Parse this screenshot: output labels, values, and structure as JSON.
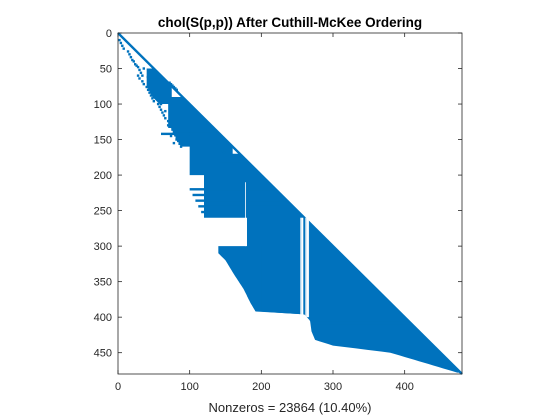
{
  "chart_data": {
    "type": "spy",
    "title": "chol(S(p,p)) After Cuthill-McKee Ordering",
    "xlabel": "Nonzeros = 23864 (10.40%)",
    "matrix_size": 480,
    "nonzeros": 23864,
    "density_percent": 10.4,
    "xlim": [
      0,
      480
    ],
    "ylim": [
      0,
      480
    ],
    "y_reversed": true,
    "x_ticks": [
      0,
      100,
      200,
      300,
      400
    ],
    "y_ticks": [
      0,
      50,
      100,
      150,
      200,
      250,
      300,
      350,
      400,
      450
    ],
    "marker_color": "#0072BD",
    "grid": false,
    "profile_left_col_by_row": [
      [
        0,
        0
      ],
      [
        10,
        4
      ],
      [
        20,
        12
      ],
      [
        30,
        22
      ],
      [
        40,
        28
      ],
      [
        55,
        32
      ],
      [
        70,
        38
      ],
      [
        90,
        48
      ],
      [
        100,
        58
      ],
      [
        120,
        64
      ],
      [
        135,
        75
      ],
      [
        150,
        82
      ],
      [
        160,
        88
      ],
      [
        175,
        92
      ],
      [
        190,
        98
      ],
      [
        210,
        96
      ],
      [
        230,
        100
      ],
      [
        250,
        104
      ],
      [
        262,
        112
      ],
      [
        280,
        118
      ],
      [
        300,
        130
      ],
      [
        320,
        150
      ],
      [
        340,
        162
      ],
      [
        360,
        175
      ],
      [
        380,
        185
      ],
      [
        392,
        192
      ],
      [
        396,
        260
      ],
      [
        405,
        268
      ],
      [
        420,
        270
      ],
      [
        432,
        275
      ],
      [
        440,
        300
      ],
      [
        450,
        380
      ],
      [
        465,
        430
      ],
      [
        480,
        480
      ]
    ],
    "dense_blocks": [
      {
        "rows": [
          50,
          100
        ],
        "cols": [
          40,
          75
        ]
      },
      {
        "rows": [
          90,
          160
        ],
        "cols": [
          70,
          125
        ]
      },
      {
        "rows": [
          120,
          200
        ],
        "cols": [
          100,
          160
        ]
      },
      {
        "rows": [
          170,
          260
        ],
        "cols": [
          120,
          200
        ]
      },
      {
        "rows": [
          200,
          400
        ],
        "cols": [
          180,
          270
        ]
      },
      {
        "rows": [
          250,
          480
        ],
        "cols": [
          200,
          480
        ]
      },
      {
        "rows": [
          300,
          400
        ],
        "cols": [
          140,
          200
        ]
      }
    ],
    "sparse_row_bands": [
      {
        "row": 62,
        "cols": [
          40,
          62
        ]
      },
      {
        "row": 132,
        "cols": [
          70,
          132
        ]
      },
      {
        "row": 142,
        "cols": [
          60,
          142
        ]
      },
      {
        "row": 150,
        "cols": [
          80,
          150
        ]
      },
      {
        "row": 172,
        "cols": [
          120,
          172
        ]
      },
      {
        "row": 180,
        "cols": [
          140,
          180
        ]
      },
      {
        "row": 220,
        "cols": [
          100,
          220
        ]
      },
      {
        "row": 228,
        "cols": [
          104,
          228
        ]
      },
      {
        "row": 236,
        "cols": [
          108,
          236
        ]
      },
      {
        "row": 244,
        "cols": [
          112,
          244
        ]
      },
      {
        "row": 252,
        "cols": [
          116,
          252
        ]
      },
      {
        "row": 384,
        "cols": [
          270,
          384
        ]
      },
      {
        "row": 396,
        "cols": [
          270,
          396
        ]
      },
      {
        "row": 408,
        "cols": [
          270,
          408
        ]
      }
    ],
    "gap_columns": [
      {
        "col": 178,
        "rows": [
          210,
          300
        ]
      },
      {
        "col": 255,
        "rows": [
          260,
          400
        ]
      },
      {
        "col": 256,
        "rows": [
          260,
          400
        ]
      },
      {
        "col": 257,
        "rows": [
          260,
          400
        ]
      },
      {
        "col": 258,
        "rows": [
          260,
          400
        ]
      },
      {
        "col": 262,
        "rows": [
          260,
          400
        ]
      },
      {
        "col": 263,
        "rows": [
          260,
          400
        ]
      },
      {
        "col": 264,
        "rows": [
          260,
          400
        ]
      },
      {
        "col": 265,
        "rows": [
          260,
          400
        ]
      },
      {
        "col": 266,
        "rows": [
          260,
          400
        ]
      }
    ],
    "scatter_points": [
      [
        10,
        2
      ],
      [
        14,
        4
      ],
      [
        18,
        6
      ],
      [
        22,
        8
      ],
      [
        26,
        14
      ],
      [
        30,
        16
      ],
      [
        34,
        18
      ],
      [
        38,
        20
      ],
      [
        40,
        22
      ],
      [
        44,
        24
      ],
      [
        46,
        26
      ],
      [
        48,
        28
      ],
      [
        52,
        30
      ],
      [
        56,
        32
      ],
      [
        60,
        28
      ],
      [
        64,
        30
      ],
      [
        68,
        34
      ],
      [
        72,
        36
      ],
      [
        76,
        40
      ],
      [
        80,
        42
      ],
      [
        84,
        44
      ],
      [
        88,
        46
      ],
      [
        92,
        48
      ],
      [
        96,
        50
      ],
      [
        100,
        56
      ],
      [
        104,
        58
      ],
      [
        108,
        60
      ],
      [
        112,
        62
      ],
      [
        116,
        64
      ],
      [
        120,
        66
      ],
      [
        124,
        70
      ],
      [
        128,
        72
      ],
      [
        132,
        74
      ],
      [
        136,
        76
      ],
      [
        140,
        78
      ],
      [
        144,
        80
      ],
      [
        148,
        82
      ],
      [
        152,
        84
      ],
      [
        156,
        86
      ],
      [
        160,
        88
      ],
      [
        50,
        36
      ],
      [
        60,
        34
      ],
      [
        70,
        44
      ],
      [
        80,
        46
      ],
      [
        90,
        50
      ],
      [
        100,
        60
      ],
      [
        110,
        66
      ],
      [
        130,
        70
      ],
      [
        145,
        74
      ],
      [
        155,
        78
      ],
      [
        70,
        72
      ],
      [
        72,
        74
      ],
      [
        74,
        76
      ],
      [
        76,
        78
      ],
      [
        78,
        80
      ],
      [
        80,
        82
      ],
      [
        150,
        130
      ],
      [
        152,
        132
      ],
      [
        154,
        134
      ],
      [
        156,
        136
      ],
      [
        158,
        138
      ],
      [
        160,
        140
      ],
      [
        162,
        142
      ],
      [
        164,
        144
      ],
      [
        166,
        146
      ],
      [
        168,
        148
      ]
    ]
  }
}
